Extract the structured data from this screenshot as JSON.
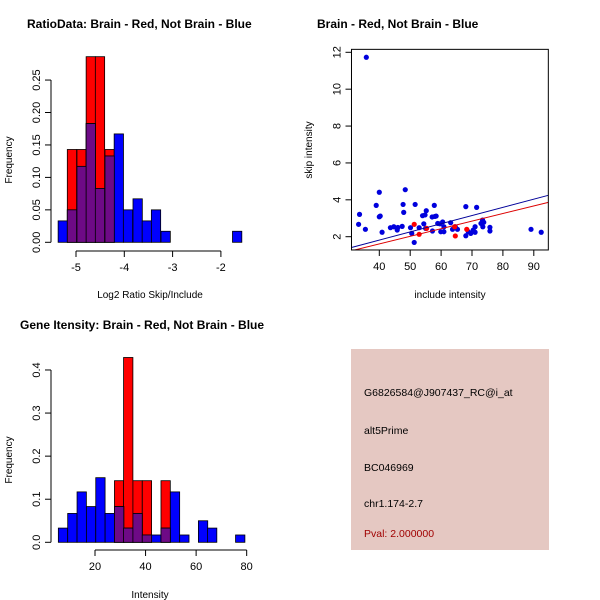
{
  "chart_data": [
    {
      "type": "bar",
      "subtype": "histogram-overlay",
      "title": "RatioData: Brain - Red, Not Brain - Blue",
      "xlabel": "Log2 Ratio Skip/Include",
      "ylabel": "Frequency",
      "xticks": [
        -5,
        -4,
        -3,
        -2
      ],
      "yticks": [
        "0.00",
        "0.05",
        "0.10",
        "0.15",
        "0.20",
        "0.25"
      ],
      "bin_width": 0.193,
      "series": [
        {
          "name": "Brain",
          "color": "#ff0000",
          "bins": [
            [
              -5.18,
              0.143
            ],
            [
              -4.98,
              0.143
            ],
            [
              -4.79,
              0.286
            ],
            [
              -4.6,
              0.286
            ],
            [
              -4.4,
              0.143
            ]
          ]
        },
        {
          "name": "Not Brain",
          "color": "#0000ff",
          "bins": [
            [
              -5.37,
              0.033
            ],
            [
              -5.18,
              0.05
            ],
            [
              -4.98,
              0.117
            ],
            [
              -4.79,
              0.183
            ],
            [
              -4.6,
              0.083
            ],
            [
              -4.4,
              0.133
            ],
            [
              -4.21,
              0.167
            ],
            [
              -4.02,
              0.05
            ],
            [
              -3.82,
              0.067
            ],
            [
              -3.63,
              0.033
            ],
            [
              -3.44,
              0.05
            ],
            [
              -3.24,
              0.017
            ],
            [
              -1.76,
              0.017
            ]
          ]
        }
      ],
      "overlap_color": "#6e0a86"
    },
    {
      "type": "scatter",
      "title": "Brain - Red, Not Brain - Blue",
      "xlabel": "include intensity",
      "ylabel": "skip intensity",
      "xlim": [
        31,
        94.7
      ],
      "ylim": [
        1.28,
        12.16
      ],
      "xticks": [
        40,
        50,
        60,
        70,
        80,
        90
      ],
      "yticks": [
        2,
        4,
        6,
        8,
        10,
        12
      ],
      "series": [
        {
          "name": "Not Brain",
          "color": "#0000dd",
          "points": [
            [
              35.8,
              11.73
            ],
            [
              33.3,
              2.67
            ],
            [
              33.6,
              3.21
            ],
            [
              35.5,
              2.4
            ],
            [
              40,
              4.41
            ],
            [
              39,
              3.7
            ],
            [
              40,
              3.08
            ],
            [
              40.3,
              3.12
            ],
            [
              40.9,
              2.24
            ],
            [
              43.6,
              2.49
            ],
            [
              44.7,
              2.54
            ],
            [
              45.8,
              2.36
            ],
            [
              46,
              2.5
            ],
            [
              47.4,
              2.56
            ],
            [
              47.7,
              3.75
            ],
            [
              47.9,
              3.32
            ],
            [
              48.4,
              4.55
            ],
            [
              51.6,
              3.75
            ],
            [
              50.1,
              2.49
            ],
            [
              50.5,
              2.18
            ],
            [
              51.3,
              1.69
            ],
            [
              52.9,
              2.49
            ],
            [
              54,
              3.14
            ],
            [
              54.8,
              3.18
            ],
            [
              55.2,
              3.41
            ],
            [
              54.4,
              2.7
            ],
            [
              55,
              2.45
            ],
            [
              57.2,
              2.31
            ],
            [
              57.8,
              3.7
            ],
            [
              57.1,
              3.07
            ],
            [
              58,
              3.1
            ],
            [
              58.4,
              3.12
            ],
            [
              58.9,
              2.72
            ],
            [
              59.6,
              2.7
            ],
            [
              60.5,
              2.8
            ],
            [
              60.9,
              2.27
            ],
            [
              59.9,
              2.27
            ],
            [
              60.9,
              2.54
            ],
            [
              63.1,
              2.76
            ],
            [
              63.7,
              2.4
            ],
            [
              65.3,
              2.4
            ],
            [
              64.6,
              2.54
            ],
            [
              68,
              3.63
            ],
            [
              68,
              2.05
            ],
            [
              68.8,
              2.27
            ],
            [
              69.6,
              2.18
            ],
            [
              70.4,
              2.36
            ],
            [
              71,
              2.54
            ],
            [
              71.5,
              3.59
            ],
            [
              71,
              2.24
            ],
            [
              72.9,
              2.72
            ],
            [
              73.5,
              2.54
            ],
            [
              73.8,
              2.78
            ],
            [
              73.4,
              2.9
            ],
            [
              75.8,
              2.51
            ],
            [
              75.8,
              2.31
            ],
            [
              89.1,
              2.4
            ],
            [
              92.4,
              2.24
            ]
          ],
          "fit": {
            "slope": 0.0444,
            "intercept": 0.04
          }
        },
        {
          "name": "Brain",
          "color": "#ff0000",
          "points": [
            [
              51.3,
              2.67
            ],
            [
              52.9,
              2.13
            ],
            [
              64.6,
              2.04
            ],
            [
              64.4,
              2.54
            ],
            [
              55.3,
              2.45
            ],
            [
              68.3,
              2.4
            ]
          ],
          "fit": {
            "slope": 0.0412,
            "intercept": -0.04
          }
        }
      ]
    },
    {
      "type": "bar",
      "subtype": "histogram-overlay",
      "title": "Gene Itensity: Brain - Red, Not Brain - Blue",
      "xlabel": "Intensity",
      "ylabel": "Frequency",
      "xticks": [
        20,
        40,
        60,
        80
      ],
      "yticks": [
        "0.0",
        "0.1",
        "0.2",
        "0.3",
        "0.4"
      ],
      "bin_width": 3.69,
      "series": [
        {
          "name": "Brain",
          "color": "#ff0000",
          "bins": [
            [
              27.7,
              0.143
            ],
            [
              31.3,
              0.429
            ],
            [
              35.0,
              0.143
            ],
            [
              38.7,
              0.143
            ],
            [
              46.1,
              0.143
            ]
          ]
        },
        {
          "name": "Not Brain",
          "color": "#0000ff",
          "bins": [
            [
              5.5,
              0.033
            ],
            [
              9.2,
              0.067
            ],
            [
              12.9,
              0.117
            ],
            [
              16.6,
              0.083
            ],
            [
              20.3,
              0.15
            ],
            [
              24.0,
              0.067
            ],
            [
              27.7,
              0.083
            ],
            [
              31.3,
              0.033
            ],
            [
              35.0,
              0.067
            ],
            [
              38.7,
              0.017
            ],
            [
              42.4,
              0.017
            ],
            [
              46.1,
              0.033
            ],
            [
              49.8,
              0.117
            ],
            [
              53.5,
              0.017
            ],
            [
              60.9,
              0.05
            ],
            [
              64.5,
              0.033
            ],
            [
              75.6,
              0.017
            ]
          ]
        }
      ],
      "overlap_color": "#6e0a86"
    }
  ],
  "info_panel": {
    "background": "#e5c8c2",
    "probe_id": "G6826584@J907437_RC@i_at",
    "event_type": "alt5Prime",
    "accession": "BC046969",
    "location": "chr1.174-2.7",
    "pval": "Pval: 2.000000",
    "pval_color": "#a00000"
  }
}
